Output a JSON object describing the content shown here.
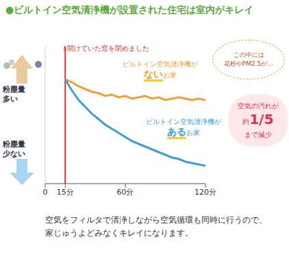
{
  "chart_data": {
    "type": "line",
    "title": "●ビルトイン空気清浄機が設置された住宅は室内がキレイ",
    "x": [
      15,
      20,
      25,
      30,
      35,
      40,
      45,
      50,
      55,
      60,
      65,
      70,
      75,
      80,
      85,
      90,
      95,
      100,
      105,
      110,
      115,
      120
    ],
    "series": [
      {
        "name": "ビルトイン空気清浄機がないお家",
        "color": "#f0a030",
        "values": [
          76,
          74,
          71,
          69,
          67,
          66,
          64,
          65,
          63,
          64,
          62,
          63,
          64,
          62,
          63,
          61,
          62,
          63,
          62,
          61,
          62,
          61
        ]
      },
      {
        "name": "ビルトイン空気清浄機があるお家",
        "color": "#3a9fd8",
        "values": [
          76,
          68,
          61,
          56,
          51,
          47,
          43,
          40,
          37,
          34,
          31,
          29,
          27,
          25,
          23,
          21,
          19,
          18,
          16,
          15,
          14,
          13
        ]
      }
    ],
    "xlim": [
      0,
      120
    ],
    "xticks": [
      0,
      {
        "value": 15,
        "label": "15分"
      },
      {
        "value": 60,
        "label": "60分"
      },
      {
        "value": 120,
        "label": "120分"
      }
    ],
    "ylim": [
      0,
      100
    ],
    "tick_labels": "x",
    "grid": false,
    "event": {
      "x": 15,
      "label": "↓開けていた窓を閉めました",
      "color": "#e03030"
    },
    "y_label_high": [
      "粉塵量",
      "多い"
    ],
    "y_label_low": [
      "粉塵量",
      "少ない"
    ],
    "note": [
      "この中には",
      "花粉やPM2.5が…"
    ],
    "reduction_note": [
      "空気の汚れが",
      "約1/5",
      "まで減少"
    ],
    "footer": [
      "空気をフィルタで清浄しながら空気循環も同時に行うので、",
      "家じゅうよどみなくキレイになります。"
    ]
  }
}
